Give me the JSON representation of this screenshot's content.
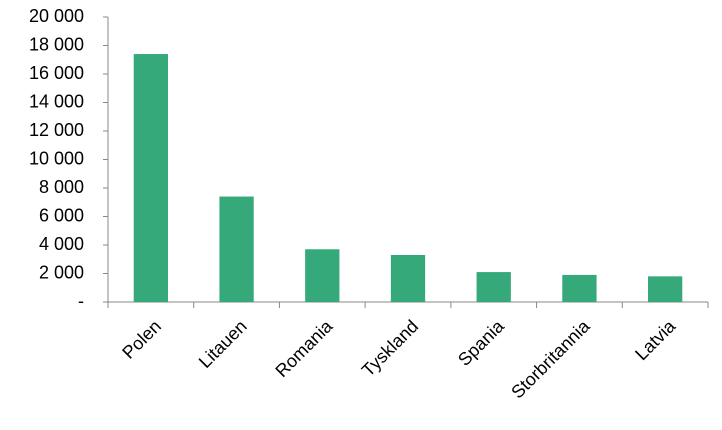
{
  "chart_data": {
    "type": "bar",
    "categories": [
      "Polen",
      "Litauen",
      "Romania",
      "Tyskland",
      "Spania",
      "Storbritannia",
      "Latvia"
    ],
    "values": [
      17400,
      7400,
      3700,
      3300,
      2100,
      1900,
      1800
    ],
    "color": "#35a97a",
    "ylim": [
      0,
      20000
    ],
    "yticks": [
      {
        "value": 0,
        "label": "-"
      },
      {
        "value": 2000,
        "label": "2 000"
      },
      {
        "value": 4000,
        "label": "4 000"
      },
      {
        "value": 6000,
        "label": "6 000"
      },
      {
        "value": 8000,
        "label": "8 000"
      },
      {
        "value": 10000,
        "label": "10 000"
      },
      {
        "value": 12000,
        "label": "12 000"
      },
      {
        "value": 14000,
        "label": "14 000"
      },
      {
        "value": 16000,
        "label": "16 000"
      },
      {
        "value": 18000,
        "label": "18 000"
      },
      {
        "value": 20000,
        "label": "20 000"
      }
    ],
    "grid": false
  }
}
